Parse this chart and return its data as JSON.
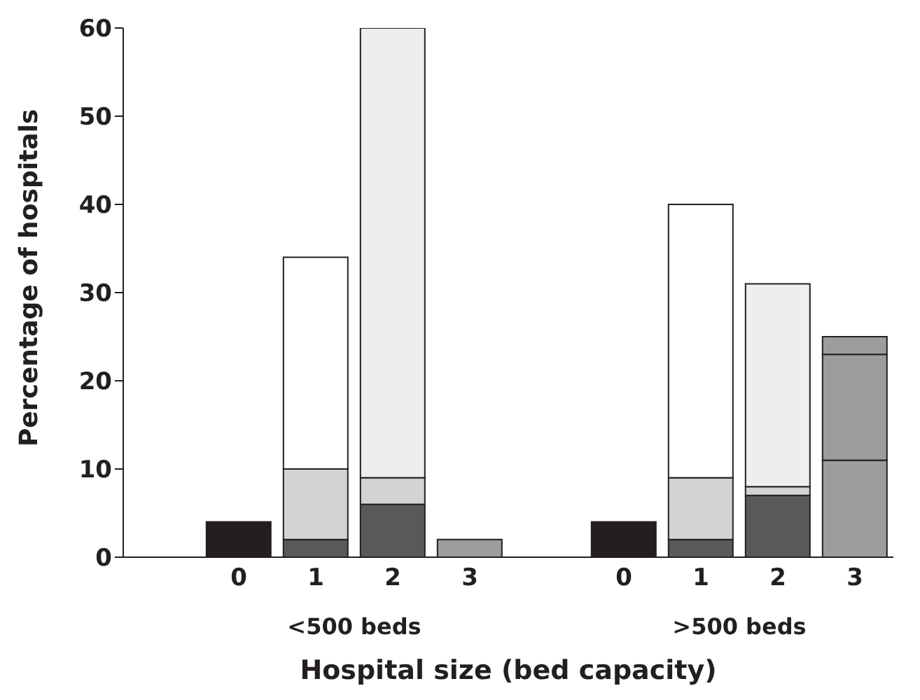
{
  "chart_data": {
    "type": "bar",
    "stacked": true,
    "xlabel": "Hospital size (bed capacity)",
    "ylabel": "Percentage of hospitals",
    "categories": [
      null,
      "0",
      "1",
      "2",
      "3",
      null,
      "0",
      "1",
      "2",
      "3"
    ],
    "annotations": [
      "<500 beds",
      ">500 beds"
    ],
    "series": [
      {
        "color": "#231f20",
        "values": [
          null,
          4,
          null,
          null,
          null,
          null,
          4,
          null,
          null,
          null
        ]
      },
      {
        "color": "#58595b",
        "values": [
          null,
          null,
          2,
          6,
          null,
          null,
          null,
          2,
          7,
          null
        ]
      },
      {
        "color": "#d1d3d4",
        "values": [
          null,
          null,
          8,
          3,
          null,
          null,
          null,
          7,
          1,
          null
        ]
      },
      {
        "color": "#ffffff",
        "values": [
          null,
          null,
          24,
          null,
          null,
          null,
          null,
          31,
          null,
          null
        ]
      },
      {
        "color": "#eeeeee",
        "values": [
          null,
          null,
          null,
          51,
          null,
          null,
          null,
          null,
          23,
          null
        ]
      },
      {
        "color": "#9d9d9d",
        "values": [
          null,
          null,
          null,
          null,
          2,
          null,
          null,
          null,
          null,
          11
        ]
      },
      {
        "color": "#9d9d9d",
        "values": [
          null,
          null,
          null,
          null,
          null,
          null,
          null,
          null,
          null,
          12
        ]
      },
      {
        "color": "#9d9d9d",
        "values": [
          null,
          null,
          null,
          null,
          null,
          null,
          null,
          null,
          null,
          2
        ]
      }
    ],
    "ylim": [
      0,
      60
    ],
    "yticks": [
      0,
      10,
      20,
      30,
      40,
      50,
      60
    ],
    "grid": false,
    "legend": false
  }
}
